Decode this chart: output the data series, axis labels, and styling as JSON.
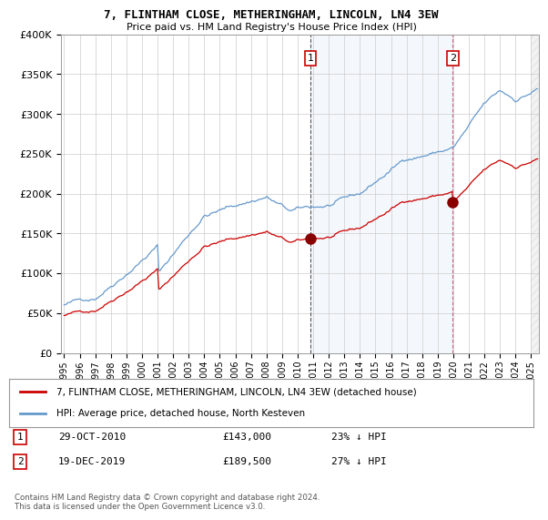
{
  "title": "7, FLINTHAM CLOSE, METHERINGHAM, LINCOLN, LN4 3EW",
  "subtitle": "Price paid vs. HM Land Registry's House Price Index (HPI)",
  "legend_label_red": "7, FLINTHAM CLOSE, METHERINGHAM, LINCOLN, LN4 3EW (detached house)",
  "legend_label_blue": "HPI: Average price, detached house, North Kesteven",
  "annotation1_label": "1",
  "annotation1_date": "29-OCT-2010",
  "annotation1_price": "£143,000",
  "annotation1_pct": "23% ↓ HPI",
  "annotation2_label": "2",
  "annotation2_date": "19-DEC-2019",
  "annotation2_price": "£189,500",
  "annotation2_pct": "27% ↓ HPI",
  "footer": "Contains HM Land Registry data © Crown copyright and database right 2024.\nThis data is licensed under the Open Government Licence v3.0.",
  "ylim": [
    0,
    400000
  ],
  "yticks": [
    0,
    50000,
    100000,
    150000,
    200000,
    250000,
    300000,
    350000,
    400000
  ],
  "ytick_labels": [
    "£0",
    "£50K",
    "£100K",
    "£150K",
    "£200K",
    "£250K",
    "£300K",
    "£350K",
    "£400K"
  ],
  "background_color": "#ffffff",
  "plot_bg_color": "#ffffff",
  "grid_color": "#cccccc",
  "red_color": "#cc0000",
  "blue_color": "#6699cc",
  "sale1_x": 2010.83,
  "sale1_y": 143000,
  "sale2_x": 2019.97,
  "sale2_y": 189500,
  "xmin": 1994.8,
  "xmax": 2025.5,
  "xticks": [
    1995,
    1996,
    1997,
    1998,
    1999,
    2000,
    2001,
    2002,
    2003,
    2004,
    2005,
    2006,
    2007,
    2008,
    2009,
    2010,
    2011,
    2012,
    2013,
    2014,
    2015,
    2016,
    2017,
    2018,
    2019,
    2020,
    2021,
    2022,
    2023,
    2024,
    2025
  ]
}
